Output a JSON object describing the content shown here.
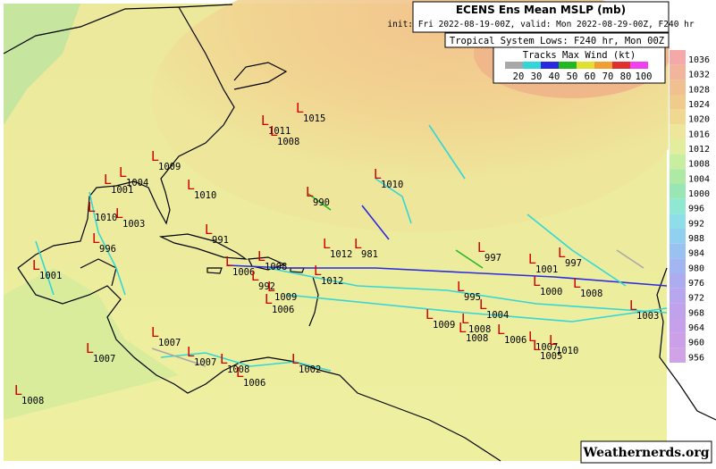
{
  "header": {
    "title": "ECENS Ens Mean MSLP (mb)",
    "init": "init: Fri 2022-08-19-00Z, valid: Mon 2022-08-29-00Z, F240 hr",
    "subtitle": "Tropical System Lows: F240 hr, Mon 00Z"
  },
  "wind_legend": {
    "title": "Tracks Max Wind (kt)",
    "labels": [
      "20",
      "30",
      "40",
      "50",
      "60",
      "70",
      "80",
      "100"
    ],
    "colors": [
      "#a8a8a8",
      "#33d6d6",
      "#2a2ae0",
      "#22b822",
      "#e0e030",
      "#f0a030",
      "#e03030",
      "#f040f0"
    ]
  },
  "pressure_scale": {
    "labels": [
      "1036",
      "1032",
      "1028",
      "1024",
      "1020",
      "1016",
      "1012",
      "1008",
      "1004",
      "1000",
      "996",
      "992",
      "988",
      "984",
      "980",
      "976",
      "972",
      "968",
      "964",
      "960",
      "956"
    ],
    "colors": [
      "#f4a8a8",
      "#f2b49a",
      "#f0c090",
      "#f0cc8c",
      "#f0d890",
      "#eee69a",
      "#e2ee9e",
      "#c8eea0",
      "#aeeaa4",
      "#98e6b4",
      "#8ee8d2",
      "#8edeea",
      "#92d0f0",
      "#98c2f2",
      "#a2b6f2",
      "#aeacf0",
      "#b8a6ee",
      "#c0a2ec",
      "#c6a0ea",
      "#cca0e8",
      "#d0a2e6"
    ]
  },
  "lows": [
    "1011",
    "1015",
    "1008",
    "1009",
    "1010",
    "1001",
    "1004",
    "1010",
    "990",
    "1010",
    "1003",
    "991",
    "996",
    "1012",
    "981",
    "1008",
    "997",
    "1001",
    "997",
    "1006",
    "992",
    "1012",
    "1001",
    "1006",
    "1009",
    "995",
    "1000",
    "1008",
    "1009",
    "1008",
    "1008",
    "1006",
    "1007",
    "1010",
    "1007",
    "1007",
    "1007",
    "1008",
    "1006",
    "1002",
    "1008",
    "1003",
    "1005",
    "1004"
  ],
  "credit": "Weathernerds.org"
}
